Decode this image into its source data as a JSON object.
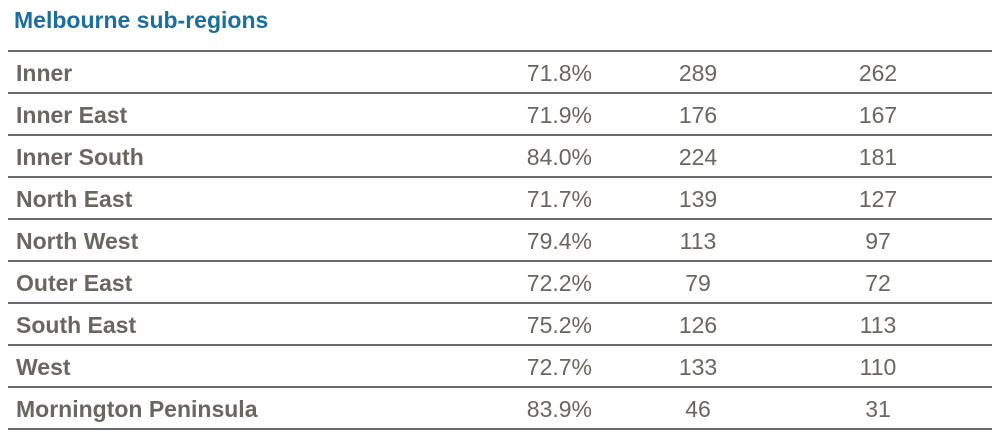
{
  "title": "Melbourne sub-regions",
  "rows": [
    {
      "name": "Inner",
      "pct": "71.8%",
      "n1": "289",
      "n2": "262"
    },
    {
      "name": "Inner East",
      "pct": "71.9%",
      "n1": "176",
      "n2": "167"
    },
    {
      "name": "Inner South",
      "pct": "84.0%",
      "n1": "224",
      "n2": "181"
    },
    {
      "name": "North East",
      "pct": "71.7%",
      "n1": "139",
      "n2": "127"
    },
    {
      "name": "North West",
      "pct": "79.4%",
      "n1": "113",
      "n2": "97"
    },
    {
      "name": "Outer East",
      "pct": "72.2%",
      "n1": "79",
      "n2": "72"
    },
    {
      "name": "South East",
      "pct": "75.2%",
      "n1": "126",
      "n2": "113"
    },
    {
      "name": "West",
      "pct": "72.7%",
      "n1": "133",
      "n2": "110"
    },
    {
      "name": "Mornington Peninsula",
      "pct": "83.9%",
      "n1": "46",
      "n2": "31"
    }
  ],
  "colors": {
    "title": "#1a6fa0",
    "text": "#6b6660",
    "rule": "#6b6b6b"
  }
}
